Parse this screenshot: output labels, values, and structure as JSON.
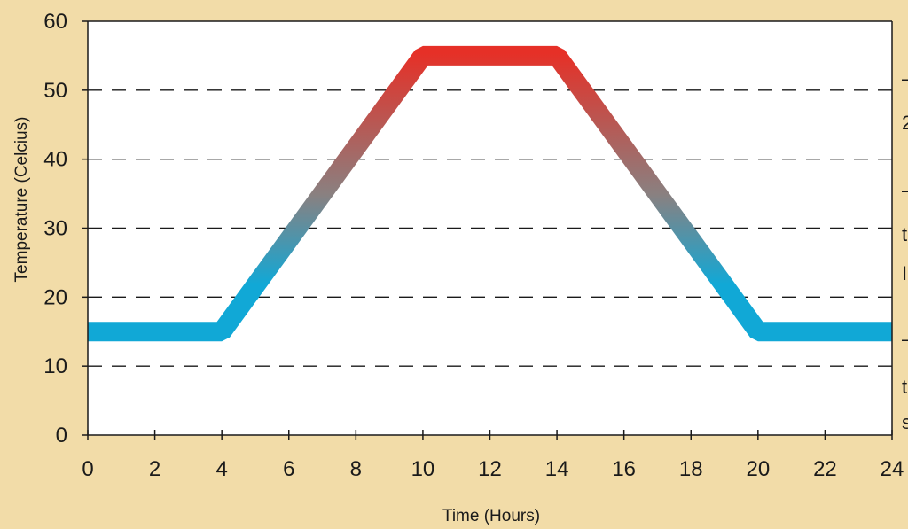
{
  "chart_data": {
    "type": "line",
    "title": "",
    "xlabel": "Time (Hours)",
    "ylabel": "Temperature (Celcius)",
    "xlim": [
      0,
      24
    ],
    "ylim": [
      0,
      60
    ],
    "x_ticks": [
      0,
      2,
      4,
      6,
      8,
      10,
      12,
      14,
      16,
      18,
      20,
      22,
      24
    ],
    "y_ticks": [
      0,
      10,
      20,
      30,
      40,
      50,
      60
    ],
    "grid": "horizontal-dashed",
    "legend": "none",
    "series": [
      {
        "x": [
          0,
          4,
          10,
          14,
          20,
          24
        ],
        "y": [
          15,
          15,
          55,
          55,
          15,
          15
        ],
        "color_low": "#11a8d6",
        "color_high": "#e63027"
      }
    ]
  },
  "cutoff_text": [
    "–",
    "2",
    "–",
    "t",
    "I",
    "–",
    "t",
    "s"
  ],
  "colors": {
    "background": "#f2dca8",
    "plot_background": "#ffffff",
    "axis": "#1a1a1a",
    "gridline": "#1a1a1a",
    "cool": "#11a8d6",
    "hot": "#e63027"
  }
}
